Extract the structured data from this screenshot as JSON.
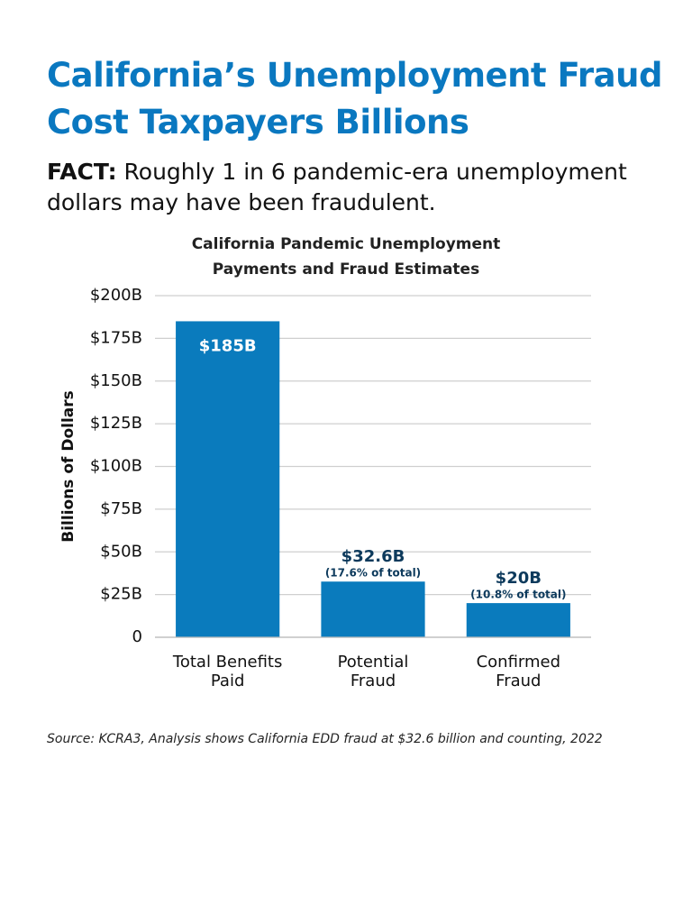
{
  "header": {
    "title": "California’s Unemployment Fraud Cost Taxpayers Billions",
    "fact_label": "FACT:",
    "fact_text": "Roughly 1 in 6 pandemic-era unemployment dollars may have been fraudulent."
  },
  "chart_data": {
    "type": "bar",
    "title": "California Pandemic Unemployment Payments and Fraud Estimates",
    "categories": [
      "Total Benefits Paid",
      "Potential Fraud",
      "Confirmed Fraud"
    ],
    "values": [
      185,
      32.6,
      20
    ],
    "value_labels": [
      "$185B",
      "$32.6B",
      "$20B"
    ],
    "value_notes": [
      null,
      "(17.6% of total)",
      "(10.8% of total)"
    ],
    "color": "#0a7bbd",
    "y_label": "Billions of Dollars",
    "ylim": [
      0,
      200
    ],
    "yticks": [
      0,
      {
        "value": 25,
        "label": "$25B"
      },
      {
        "value": 50,
        "label": "$50B"
      },
      {
        "value": 75,
        "label": "$75B"
      },
      {
        "value": 100,
        "label": "$100B"
      },
      {
        "value": 125,
        "label": "$125B"
      },
      {
        "value": 150,
        "label": "$150B"
      },
      {
        "value": 175,
        "label": "$175B"
      },
      {
        "value": 200,
        "label": "$200B"
      }
    ],
    "grid": true
  },
  "source": "Source: KCRA3, Analysis shows California EDD fraud at $32.6 billion and counting, 2022"
}
